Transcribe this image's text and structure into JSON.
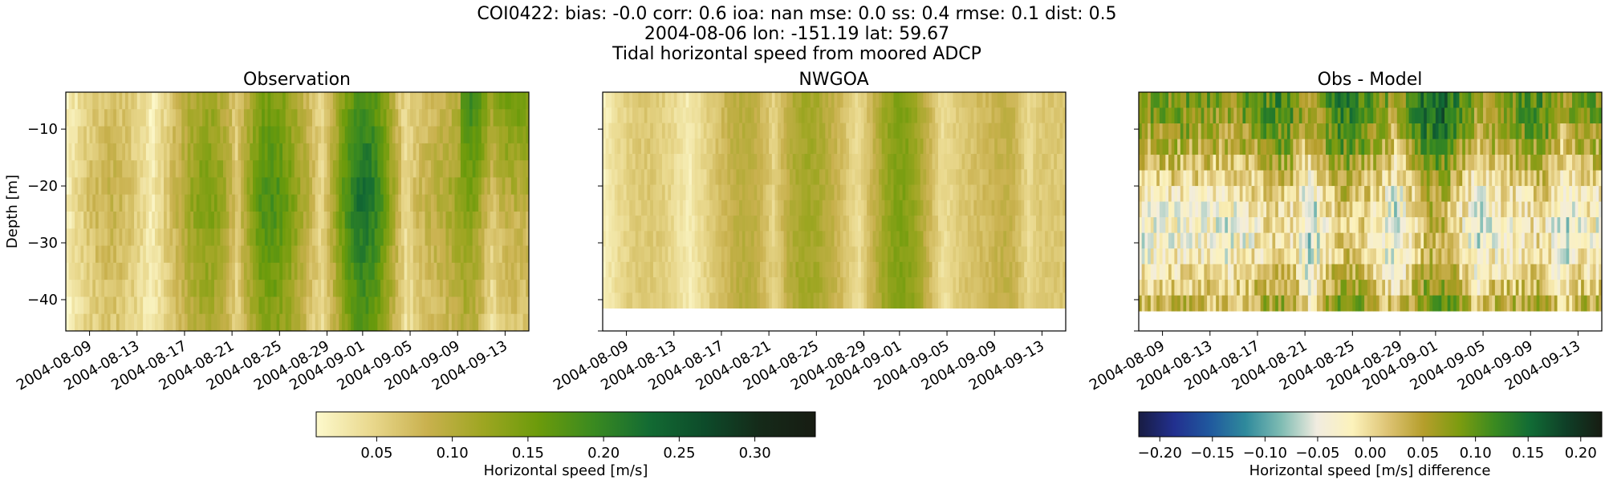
{
  "header": {
    "line1": "COI0422: bias: -0.0  corr: 0.6  ioa: nan  mse: 0.0  ss: 0.4  rmse: 0.1  dist: 0.5",
    "line2": "2004-08-06 lon: -151.19 lat: 59.67",
    "line3": "Tidal horizontal speed from moored ADCP"
  },
  "chart_data": [
    {
      "type": "heatmap",
      "title": "Observation",
      "ylabel": "Depth [m]",
      "xlabel": "",
      "x_tick_labels": [
        "2004-08-09",
        "2004-08-13",
        "2004-08-17",
        "2004-08-21",
        "2004-08-25",
        "2004-08-29",
        "2004-09-01",
        "2004-09-05",
        "2004-09-09",
        "2004-09-13"
      ],
      "y_tick_labels": [
        "−10",
        "−20",
        "−30",
        "−40"
      ],
      "y_ticks": [
        -10,
        -20,
        -30,
        -40
      ],
      "xlim": [
        "2004-08-07",
        "2004-09-15"
      ],
      "ylim": [
        -45.5,
        -3.5
      ],
      "data_depth_range": [
        -45.5,
        -3.5
      ],
      "value_trend": "speeds oscillate with tidal cycles; weak (0.05-0.10 m/s) around 2004-08-07 to 08-15 and 09-07 to 09-10, strong (0.20-0.33 m/s) around 2004-08-19 to 08-24 and 08-29 to 09-03, strongest near-surface peak around 2004-09-11 to 09-13",
      "colorscale": "speed"
    },
    {
      "type": "heatmap",
      "title": "NWGOA",
      "ylabel": "",
      "xlabel": "",
      "x_tick_labels": [
        "2004-08-09",
        "2004-08-13",
        "2004-08-17",
        "2004-08-21",
        "2004-08-25",
        "2004-08-29",
        "2004-09-01",
        "2004-09-05",
        "2004-09-09",
        "2004-09-13"
      ],
      "xlim": [
        "2004-08-07",
        "2004-09-15"
      ],
      "ylim": [
        -45.5,
        -3.5
      ],
      "data_depth_range": [
        -41.5,
        -3.5
      ],
      "value_trend": "model speeds mostly 0.03-0.18 m/s, vertically uniform, stronger around 2004-08-19 to 08-24 and 08-30 to 09-02",
      "colorscale": "speed"
    },
    {
      "type": "heatmap",
      "title": "Obs - Model",
      "ylabel": "",
      "xlabel": "",
      "x_tick_labels": [
        "2004-08-09",
        "2004-08-13",
        "2004-08-17",
        "2004-08-21",
        "2004-08-25",
        "2004-08-29",
        "2004-09-01",
        "2004-09-05",
        "2004-09-09",
        "2004-09-13"
      ],
      "xlim": [
        "2004-08-07",
        "2004-09-15"
      ],
      "ylim": [
        -45.5,
        -3.5
      ],
      "data_depth_range": [
        -42,
        -3.5
      ],
      "value_trend": "differences mostly -0.10 to 0.20 m/s, positive (observation faster) near the surface and at depth, near zero to negative at mid-depth",
      "colorscale": "difference"
    }
  ],
  "colorbars": {
    "speed": {
      "label": "Horizontal speed [m/s]",
      "range": [
        0.01,
        0.34
      ],
      "ticks": [
        0.05,
        0.1,
        0.15,
        0.2,
        0.25,
        0.3
      ],
      "tick_labels": [
        "0.05",
        "0.10",
        "0.15",
        "0.20",
        "0.25",
        "0.30"
      ],
      "colors": [
        "#fdf9cc",
        "#e9d88d",
        "#c9b14e",
        "#9ea622",
        "#6c9b0b",
        "#3a8a20",
        "#136b33",
        "#0d4b2a",
        "#152a19",
        "#171c12"
      ]
    },
    "difference": {
      "label": "Horizontal speed [m/s] difference",
      "range": [
        -0.22,
        0.22
      ],
      "ticks": [
        -0.2,
        -0.15,
        -0.1,
        -0.05,
        0.0,
        0.05,
        0.1,
        0.15,
        0.2
      ],
      "tick_labels": [
        "−0.20",
        "−0.15",
        "−0.10",
        "−0.05",
        "0.00",
        "0.05",
        "0.10",
        "0.15",
        "0.20"
      ],
      "colors": [
        "#181c43",
        "#22308f",
        "#20599e",
        "#2f8a9c",
        "#7fbcb3",
        "#f1ece0",
        "#fcf2bb",
        "#ddc373",
        "#b59e2b",
        "#7c9c10",
        "#3a8a20",
        "#116b35",
        "#0f3f27",
        "#171c12"
      ]
    }
  }
}
